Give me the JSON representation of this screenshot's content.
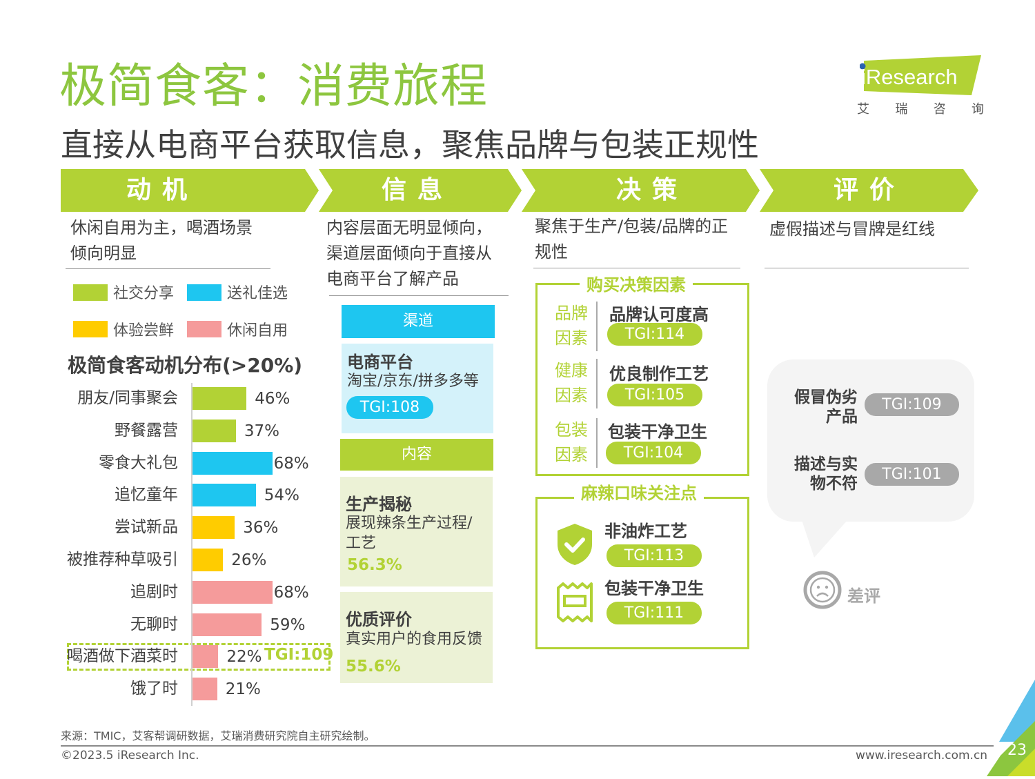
{
  "header": {
    "title": "极简食客：消费旅程",
    "subtitle": "直接从电商平台获取信息，聚焦品牌与包装正规性"
  },
  "logo": {
    "brand": "iResearch",
    "cn_chars": [
      "艾",
      "瑞",
      "咨",
      "询"
    ]
  },
  "colors": {
    "green": "#b2d235",
    "title_green": "#8dc63f",
    "blue": "#1ec6f0",
    "yellow": "#ffcc00",
    "pink": "#f59b9b",
    "gray_pill": "#a8a8a8"
  },
  "stages": [
    {
      "label": "动机",
      "desc": [
        "休闲自用为主，喝酒场景",
        "倾向明显"
      ]
    },
    {
      "label": "信息",
      "desc": [
        "内容层面无明显倾向，",
        "渠道层面倾向于直接从",
        "电商平台了解产品"
      ]
    },
    {
      "label": "决策",
      "desc": [
        "聚焦于生产/包装/品牌的正",
        "规性"
      ]
    },
    {
      "label": "评价",
      "desc": [
        "虚假描述与冒牌是红线"
      ]
    }
  ],
  "legend": [
    {
      "label": "社交分享",
      "color": "#b2d235"
    },
    {
      "label": "送礼佳选",
      "color": "#1ec6f0"
    },
    {
      "label": "体验尝鲜",
      "color": "#ffcc00"
    },
    {
      "label": "休闲自用",
      "color": "#f59b9b"
    }
  ],
  "chart_data": {
    "type": "bar",
    "orientation": "horizontal",
    "title": "极简食客动机分布(>20%)",
    "categories": [
      "朋友/同事聚会",
      "野餐露营",
      "零食大礼包",
      "追忆童年",
      "尝试新品",
      "被推荐种草吸引",
      "追剧时",
      "无聊时",
      "喝酒做下酒菜时",
      "饿了时"
    ],
    "values": [
      46,
      37,
      68,
      54,
      36,
      26,
      68,
      59,
      22,
      21
    ],
    "labels": [
      "46%",
      "37%",
      "68%",
      "54%",
      "36%",
      "26%",
      "68%",
      "59%",
      "22%",
      "21%"
    ],
    "groups": [
      "社交分享",
      "社交分享",
      "送礼佳选",
      "送礼佳选",
      "体验尝鲜",
      "体验尝鲜",
      "休闲自用",
      "休闲自用",
      "休闲自用",
      "休闲自用"
    ],
    "unit": "%",
    "xlim": [
      0,
      100
    ],
    "highlight": {
      "category": "喝酒做下酒菜时",
      "annotation": "TGI:109"
    }
  },
  "info": {
    "channel": {
      "header": "渠道",
      "title": "电商平台",
      "text": "淘宝/京东/拼多多等",
      "tgi": "TGI:108"
    },
    "content": {
      "header": "内容",
      "items": [
        {
          "title": "生产揭秘",
          "text": "展现辣条生产过程/工艺",
          "pct": "56.3%"
        },
        {
          "title": "优质评价",
          "text": "真实用户的食用反馈",
          "pct": "55.6%"
        }
      ]
    }
  },
  "decision": {
    "factors_title": "购买决策因素",
    "factors": [
      {
        "label": "品牌因素",
        "feature": "品牌认可度高",
        "tgi": "TGI:114"
      },
      {
        "label": "健康因素",
        "feature": "优良制作工艺",
        "tgi": "TGI:105"
      },
      {
        "label": "包装因素",
        "feature": "包装干净卫生",
        "tgi": "TGI:104"
      }
    ],
    "spicy_title": "麻辣口味关注点",
    "spicy": [
      {
        "icon": "shield-check-icon",
        "feature": "非油炸工艺",
        "tgi": "TGI:113"
      },
      {
        "icon": "package-icon",
        "feature": "包装干净卫生",
        "tgi": "TGI:111"
      }
    ]
  },
  "review": {
    "items": [
      {
        "label": "假冒伪劣产品",
        "tgi": "TGI:109"
      },
      {
        "label": "描述与实物不符",
        "tgi": "TGI:101"
      }
    ],
    "badge": "差评"
  },
  "footer": {
    "source": "来源：TMIC，艾客帮调研数据，艾瑞消费研究院自主研究绘制。",
    "copyright": "©2023.5 iResearch Inc.",
    "website": "www.iresearch.com.cn",
    "page": "23"
  }
}
